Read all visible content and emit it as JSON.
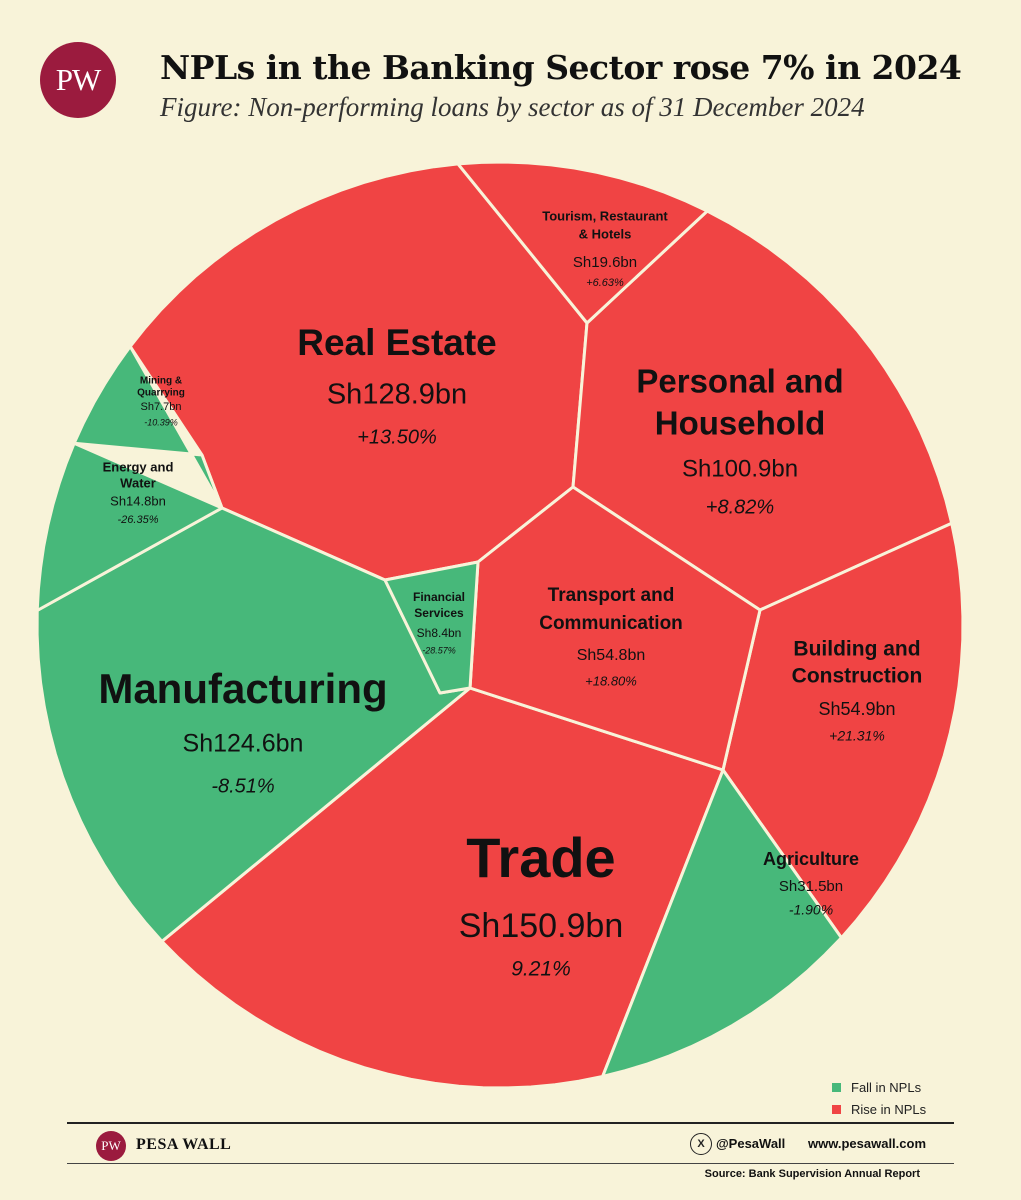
{
  "header": {
    "logo_text": "PW",
    "title": "NPLs in the Banking Sector rose 7% in 2024",
    "subtitle": "Figure: Non-performing loans by sector as of 31 December 2024"
  },
  "colors": {
    "fall": "#47b87a",
    "rise": "#f04444",
    "brand": "#9b1b3e",
    "background": "#f8f3d9",
    "border": "#f8f3d9"
  },
  "chart_data": {
    "type": "voronoi-treemap",
    "unit": "KSh billion",
    "series": [
      {
        "sector": "Trade",
        "value_label": "Sh150.9bn",
        "value": 150.9,
        "change_label": "9.21%",
        "change": 9.21,
        "direction": "rise"
      },
      {
        "sector": "Real Estate",
        "value_label": "Sh128.9bn",
        "value": 128.9,
        "change_label": "+13.50%",
        "change": 13.5,
        "direction": "rise"
      },
      {
        "sector": "Manufacturing",
        "value_label": "Sh124.6bn",
        "value": 124.6,
        "change_label": "-8.51%",
        "change": -8.51,
        "direction": "fall"
      },
      {
        "sector": "Personal and Household",
        "value_label": "Sh100.9bn",
        "value": 100.9,
        "change_label": "+8.82%",
        "change": 8.82,
        "direction": "rise"
      },
      {
        "sector": "Building and Construction",
        "value_label": "Sh54.9bn",
        "value": 54.9,
        "change_label": "+21.31%",
        "change": 21.31,
        "direction": "rise"
      },
      {
        "sector": "Transport and Communication",
        "value_label": "Sh54.8bn",
        "value": 54.8,
        "change_label": "+18.80%",
        "change": 18.8,
        "direction": "rise"
      },
      {
        "sector": "Agriculture",
        "value_label": "Sh31.5bn",
        "value": 31.5,
        "change_label": "-1.90%",
        "change": -1.9,
        "direction": "fall"
      },
      {
        "sector": "Tourism, Restaurant & Hotels",
        "value_label": "Sh19.6bn",
        "value": 19.6,
        "change_label": "+6.63%",
        "change": 6.63,
        "direction": "rise"
      },
      {
        "sector": "Energy and Water",
        "value_label": "Sh14.8bn",
        "value": 14.8,
        "change_label": "-26.35%",
        "change": -26.35,
        "direction": "fall"
      },
      {
        "sector": "Financial Services",
        "value_label": "Sh8.4bn",
        "value": 8.4,
        "change_label": "-28.57%",
        "change": -28.57,
        "direction": "fall"
      },
      {
        "sector": "Mining & Quarrying",
        "value_label": "Sh7.7bn",
        "value": 7.7,
        "change_label": "-10.39%",
        "change": -10.39,
        "direction": "fall"
      }
    ],
    "legend": [
      {
        "label": "Fall in NPLs",
        "direction": "fall"
      },
      {
        "label": "Rise in NPLs",
        "direction": "rise"
      }
    ],
    "legend_position": "bottom-right"
  },
  "footer": {
    "brand": "PESA WALL",
    "logo_text": "PW",
    "x_icon": "x-logo-icon",
    "x_glyph": "X",
    "handle": "@PesaWall",
    "website": "www.pesawall.com",
    "source": "Source: Bank Supervision Annual Report"
  }
}
